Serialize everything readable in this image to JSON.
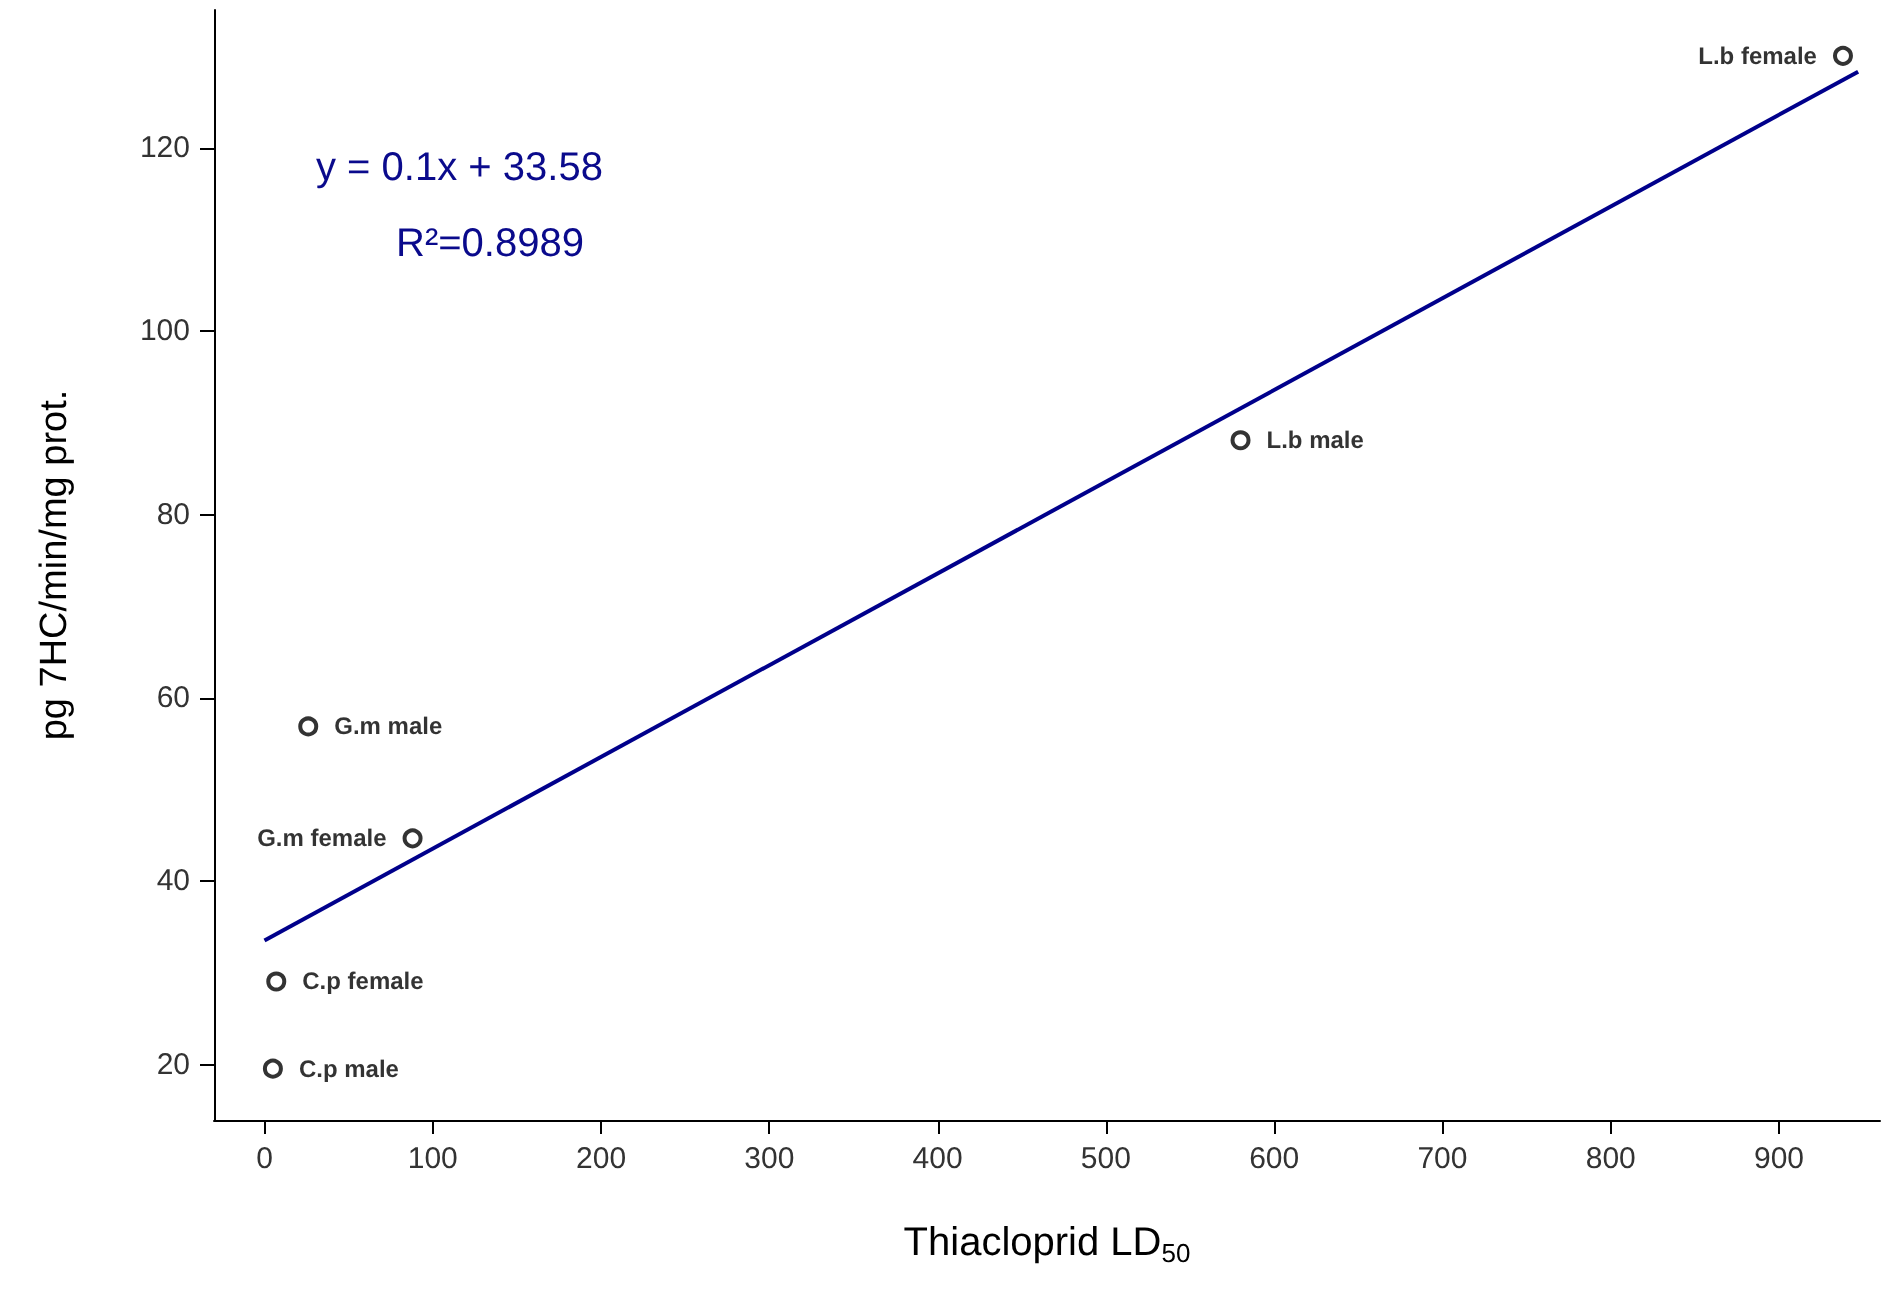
{
  "chart_data": {
    "type": "scatter",
    "xlabel": "Thiacloprid LD$_{50}$",
    "ylabel": "pg 7HC/min/mg prot.",
    "xlim": [
      -30,
      960
    ],
    "ylim": [
      14,
      135
    ],
    "xticks": [
      0,
      100,
      200,
      300,
      400,
      500,
      600,
      700,
      800,
      900
    ],
    "yticks": [
      20,
      40,
      60,
      80,
      100,
      120
    ],
    "grid": false,
    "legend": false,
    "marker": "circle",
    "annotations": [
      "y = 0.1x + 33.58",
      "R²=0.8989"
    ],
    "series": [
      {
        "name": "L.b female",
        "color": "#000000",
        "x": [
          938
        ],
        "values": [
          130
        ]
      },
      {
        "name": "L.b male",
        "color": "#000000",
        "x": [
          580
        ],
        "values": [
          88.1
        ]
      },
      {
        "name": "G.m male",
        "color": "#000000",
        "x": [
          26
        ],
        "values": [
          56.9
        ]
      },
      {
        "name": "G.m female",
        "color": "#000000",
        "x": [
          88
        ],
        "values": [
          44.7
        ]
      },
      {
        "name": "C.p female",
        "color": "#000000",
        "x": [
          7
        ],
        "values": [
          29.1
        ]
      },
      {
        "name": "C.p male",
        "color": "#000000",
        "x": [
          5
        ],
        "values": [
          19.6
        ]
      },
      {
        "type": "line",
        "color": "#00008b",
        "x": [
          0,
          947
        ],
        "values": [
          33.58,
          128.28
        ],
        "marker": "none",
        "line_style": "solid"
      }
    ]
  }
}
